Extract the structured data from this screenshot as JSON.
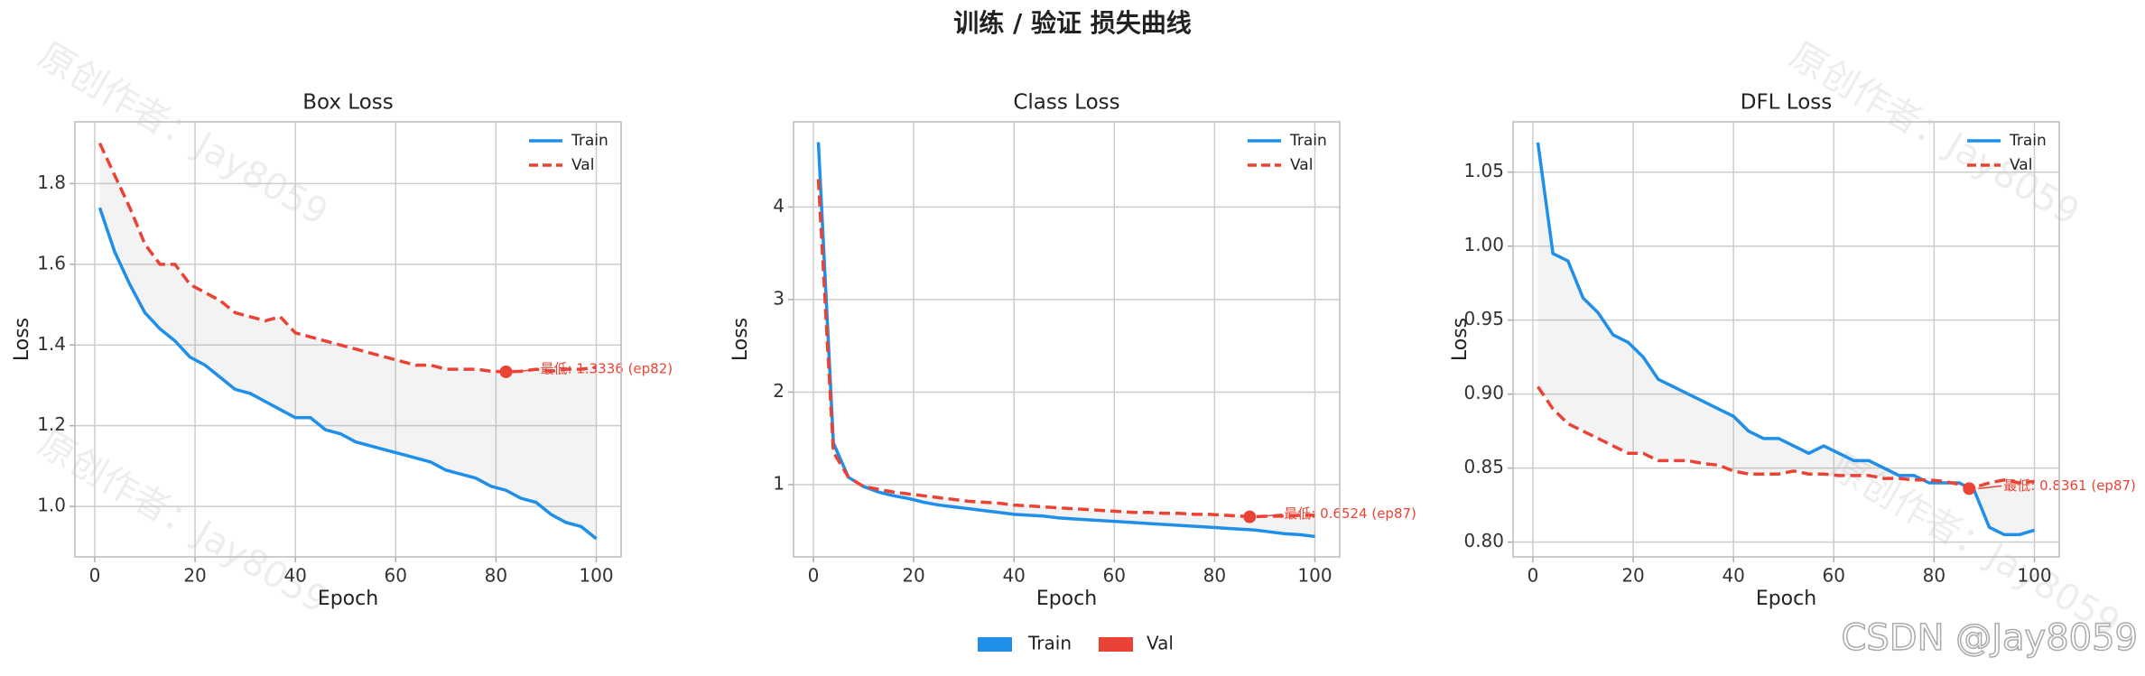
{
  "title": "训练 / 验证 损失曲线",
  "watermark": "原创作者：Jay8059",
  "credit": "CSDN @Jay8059",
  "chart_data": [
    {
      "type": "line",
      "title": "Box Loss",
      "xlabel": "Epoch",
      "ylabel": "Loss",
      "x": [
        1,
        4,
        7,
        10,
        13,
        16,
        19,
        22,
        25,
        28,
        31,
        34,
        37,
        40,
        43,
        46,
        49,
        52,
        55,
        58,
        61,
        64,
        67,
        70,
        73,
        76,
        79,
        82,
        85,
        88,
        91,
        94,
        97,
        100
      ],
      "series": [
        {
          "name": "Train",
          "color": "#1f8fea",
          "style": "solid",
          "values": [
            1.74,
            1.63,
            1.55,
            1.48,
            1.44,
            1.41,
            1.37,
            1.35,
            1.32,
            1.29,
            1.28,
            1.26,
            1.24,
            1.22,
            1.22,
            1.19,
            1.18,
            1.16,
            1.15,
            1.14,
            1.13,
            1.12,
            1.11,
            1.09,
            1.08,
            1.07,
            1.05,
            1.04,
            1.02,
            1.01,
            0.98,
            0.96,
            0.95,
            0.92
          ]
        },
        {
          "name": "Val",
          "color": "#ea4335",
          "style": "dashed",
          "values": [
            1.9,
            1.82,
            1.74,
            1.65,
            1.6,
            1.6,
            1.55,
            1.53,
            1.51,
            1.48,
            1.47,
            1.46,
            1.47,
            1.43,
            1.42,
            1.41,
            1.4,
            1.39,
            1.38,
            1.37,
            1.36,
            1.35,
            1.35,
            1.34,
            1.34,
            1.34,
            1.335,
            1.3336,
            1.335,
            1.34,
            1.335,
            1.34,
            1.34,
            1.345
          ]
        }
      ],
      "xlim": [
        -3.95,
        104.95
      ],
      "xticks": [
        0,
        20,
        40,
        60,
        80,
        100
      ],
      "ylim": [
        0.875,
        1.953
      ],
      "yticks": [
        {
          "value": 1,
          "label": "1.0"
        },
        1.2,
        1.4,
        1.6,
        1.8
      ],
      "grid": true,
      "legend": "upper right",
      "fill_between": true,
      "best": {
        "x": 82,
        "y": 1.3336,
        "label": "最低: 1.3336 (ep82)",
        "color": "#ea4335"
      }
    },
    {
      "type": "line",
      "title": "Class Loss",
      "xlabel": "Epoch",
      "ylabel": "Loss",
      "x": [
        1,
        4,
        7,
        10,
        13,
        16,
        19,
        22,
        25,
        28,
        31,
        34,
        37,
        40,
        43,
        46,
        49,
        52,
        55,
        58,
        61,
        64,
        67,
        70,
        73,
        76,
        79,
        82,
        85,
        88,
        91,
        94,
        97,
        100
      ],
      "series": [
        {
          "name": "Train",
          "color": "#1f8fea",
          "style": "solid",
          "values": [
            4.7,
            1.45,
            1.08,
            0.98,
            0.92,
            0.88,
            0.85,
            0.81,
            0.78,
            0.76,
            0.74,
            0.72,
            0.7,
            0.68,
            0.67,
            0.66,
            0.64,
            0.63,
            0.62,
            0.61,
            0.6,
            0.59,
            0.58,
            0.57,
            0.56,
            0.55,
            0.54,
            0.53,
            0.52,
            0.51,
            0.49,
            0.47,
            0.46,
            0.44
          ]
        },
        {
          "name": "Val",
          "color": "#ea4335",
          "style": "dashed",
          "values": [
            4.3,
            1.35,
            1.08,
            0.98,
            0.95,
            0.92,
            0.9,
            0.88,
            0.86,
            0.84,
            0.82,
            0.81,
            0.8,
            0.78,
            0.77,
            0.76,
            0.75,
            0.74,
            0.73,
            0.72,
            0.71,
            0.7,
            0.7,
            0.69,
            0.69,
            0.68,
            0.68,
            0.67,
            0.66,
            0.655,
            0.66,
            0.66,
            0.67,
            0.67
          ]
        }
      ],
      "xlim": [
        -3.95,
        104.95
      ],
      "xticks": [
        0,
        20,
        40,
        60,
        80,
        100
      ],
      "ylim": [
        0.22,
        4.92
      ],
      "yticks": [
        1,
        2,
        3,
        4
      ],
      "grid": true,
      "legend": "upper right",
      "fill_between": true,
      "best": {
        "x": 87,
        "y": 0.6524,
        "label": "最低: 0.6524 (ep87)",
        "color": "#ea4335"
      }
    },
    {
      "type": "line",
      "title": "DFL Loss",
      "xlabel": "Epoch",
      "ylabel": "Loss",
      "x": [
        1,
        4,
        7,
        10,
        13,
        16,
        19,
        22,
        25,
        28,
        31,
        34,
        37,
        40,
        43,
        46,
        49,
        52,
        55,
        58,
        61,
        64,
        67,
        70,
        73,
        76,
        79,
        82,
        85,
        88,
        91,
        94,
        97,
        100
      ],
      "series": [
        {
          "name": "Train",
          "color": "#1f8fea",
          "style": "solid",
          "values": [
            1.07,
            0.995,
            0.99,
            0.965,
            0.955,
            0.94,
            0.935,
            0.925,
            0.91,
            0.905,
            0.9,
            0.895,
            0.89,
            0.885,
            0.875,
            0.87,
            0.87,
            0.865,
            0.86,
            0.865,
            0.86,
            0.855,
            0.855,
            0.85,
            0.845,
            0.845,
            0.84,
            0.84,
            0.84,
            0.835,
            0.81,
            0.805,
            0.805,
            0.808
          ]
        },
        {
          "name": "Val",
          "color": "#ea4335",
          "style": "dashed",
          "values": [
            0.905,
            0.89,
            0.88,
            0.875,
            0.87,
            0.865,
            0.86,
            0.86,
            0.855,
            0.855,
            0.855,
            0.853,
            0.852,
            0.848,
            0.846,
            0.846,
            0.846,
            0.848,
            0.846,
            0.846,
            0.845,
            0.845,
            0.845,
            0.843,
            0.843,
            0.842,
            0.842,
            0.841,
            0.839,
            0.837,
            0.84,
            0.842,
            0.84,
            0.841
          ]
        }
      ],
      "xlim": [
        -3.95,
        104.95
      ],
      "xticks": [
        0,
        20,
        40,
        60,
        80,
        100
      ],
      "ylim": [
        0.79,
        1.084
      ],
      "yticks": [
        {
          "value": 0.8,
          "label": "0.80"
        },
        0.85,
        {
          "value": 0.9,
          "label": "0.90"
        },
        0.95,
        {
          "value": 1,
          "label": "1.00"
        },
        1.05
      ],
      "grid": true,
      "legend": "upper right",
      "fill_between": true,
      "best": {
        "x": 87,
        "y": 0.8361,
        "label": "最低: 0.8361 (ep87)",
        "color": "#ea4335"
      }
    }
  ]
}
